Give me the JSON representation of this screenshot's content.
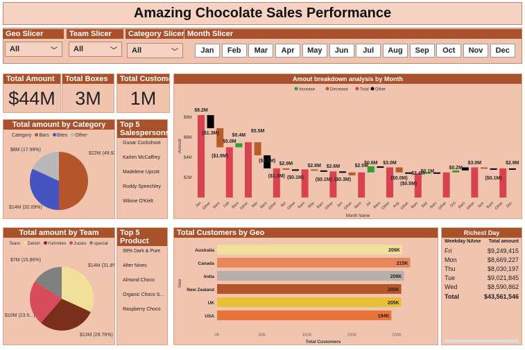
{
  "title": "Amazing Chocolate Sales Performance",
  "slicers": {
    "geo": {
      "label": "Geo Slicer",
      "value": "All"
    },
    "team": {
      "label": "Team Slicer",
      "value": "All"
    },
    "category": {
      "label": "Category Slicer",
      "value": "All"
    },
    "month": {
      "label": "Month Slicer",
      "options": [
        "Jan",
        "Feb",
        "Mar",
        "Apr",
        "May",
        "Jun",
        "Jul",
        "Aug",
        "Sep",
        "Oct",
        "Nov",
        "Dec"
      ]
    }
  },
  "kpis": {
    "total_amount": {
      "label": "Total Amount",
      "value": "$44M"
    },
    "total_boxes": {
      "label": "Total Boxes",
      "value": "3M"
    },
    "total_customers": {
      "label": "Total Customers",
      "value": "1M"
    }
  },
  "colors": {
    "header": "#a8512a",
    "panel": "#f1c4b0",
    "increase": "#2ca02c",
    "decrease": "#b85c28",
    "total": "#d9434f",
    "other": "#000000"
  },
  "waterfall": {
    "title": "Amout breakdown analysis by Month",
    "legend": [
      "Increase",
      "Decrease",
      "Total",
      "Other"
    ],
    "ylabel": "Amount",
    "xlabel": "Month Name",
    "yticks": [
      "$8M",
      "$6M",
      "$4M",
      "$2M"
    ],
    "labels": [
      "$8.2M",
      "($1.3M)",
      "($1.9M)",
      "$5.0M",
      "$0.4M",
      "$5.5M",
      "($1.3M)",
      "($1.3M)",
      "$2.9M",
      "($0.1M)",
      "$2.8M",
      "($0.1M)",
      "$2.6M",
      "($0.3M)",
      "$2.5M",
      "$0.6M",
      "$3.0M",
      "($0.0M)",
      "($0.5M)",
      "$2.4M",
      "$0.1M",
      "$0.2M",
      "$3.0M",
      "($0.1M)",
      "$2.9M"
    ],
    "categories": [
      "Jan",
      "Other",
      "Bars",
      "Feb",
      "Bars",
      "Other",
      "Mar",
      "Bars",
      "Other",
      "Apr",
      "Other",
      "Bars",
      "May",
      "Bars",
      "Other",
      "Jun",
      "Other",
      "Bars",
      "Jul",
      "Bars",
      "Other",
      "Aug",
      "Other",
      "Bars",
      "Sep",
      "Bars",
      "Other",
      "Oct",
      "Bars",
      "Other",
      "Nov",
      "Bars",
      "Other",
      "Dec"
    ]
  },
  "chart_data": [
    {
      "type": "pie",
      "title": "Total amount by Category",
      "legend_title": "Category",
      "labels": [
        "Bars",
        "Bites",
        "Other"
      ],
      "values": [
        22,
        14,
        8
      ],
      "pct": [
        "49.92%",
        "32.09%",
        "17.99%"
      ],
      "data_labels": [
        "$22M (49.92%)",
        "$14M (32.09%)",
        "$8M (17.99%)"
      ],
      "colors": [
        "#b5562a",
        "#4554c0",
        "#b8b8b8"
      ]
    },
    {
      "type": "pie",
      "title": "Total amount by Team",
      "legend_title": "Team",
      "labels": [
        "Delish",
        "Yummies",
        "Jucies",
        "special"
      ],
      "values": [
        14,
        13,
        10,
        7
      ],
      "pct": [
        "31.8%",
        "28.76%",
        "23.5%",
        "15.86%"
      ],
      "data_labels": [
        "$14M (31.8%)",
        "$13M (28.76%)",
        "$10M (23.5...)",
        "$7M (15.86%)"
      ],
      "colors": [
        "#f0e09a",
        "#7a2e1a",
        "#d84c5a",
        "#808080"
      ]
    },
    {
      "type": "bar",
      "title": "Total Customers by Geo",
      "categories": [
        "Australia",
        "Canada",
        "India",
        "New Zealand",
        "UK",
        "USA"
      ],
      "values": [
        206,
        215,
        208,
        205,
        205,
        194
      ],
      "data_labels": [
        "206K",
        "215K",
        "208K",
        "205K",
        "205K",
        "194K"
      ],
      "colors": [
        "#f0e09a",
        "#e8875a",
        "#b8b0a8",
        "#b5562a",
        "#e8c038",
        "#e8743a"
      ],
      "xlabel": "Total Customers",
      "ylabel": "Geo",
      "xlim": [
        0,
        230
      ],
      "xticks": [
        "0K",
        "50K",
        "100K",
        "150K",
        "200K"
      ]
    }
  ],
  "top_sales": {
    "title": "Top 5 Salespersons",
    "items": [
      "Gunar Cockshoot",
      "Karlen McCaffrey",
      "Madelene Upcott",
      "Roddy Speechley",
      "Wilone O'Kielt"
    ]
  },
  "top_products": {
    "title": "Top 5 Product",
    "items": [
      "99% Dark & Pure",
      "After Nines",
      "Almond Choco",
      "Organic Choco S...",
      "Raspberry Choco"
    ]
  },
  "richest_day": {
    "title": "Richest Day",
    "col1": "Weekday NAme",
    "col2": "Total amount",
    "rows": [
      [
        "Fri",
        "$9,249,415"
      ],
      [
        "Mon",
        "$8,669,227"
      ],
      [
        "Thu",
        "$8,030,197"
      ],
      [
        "Tue",
        "$9,021,845"
      ],
      [
        "Wed",
        "$8,590,862"
      ]
    ],
    "total_label": "Total",
    "total_value": "$43,561,546"
  }
}
